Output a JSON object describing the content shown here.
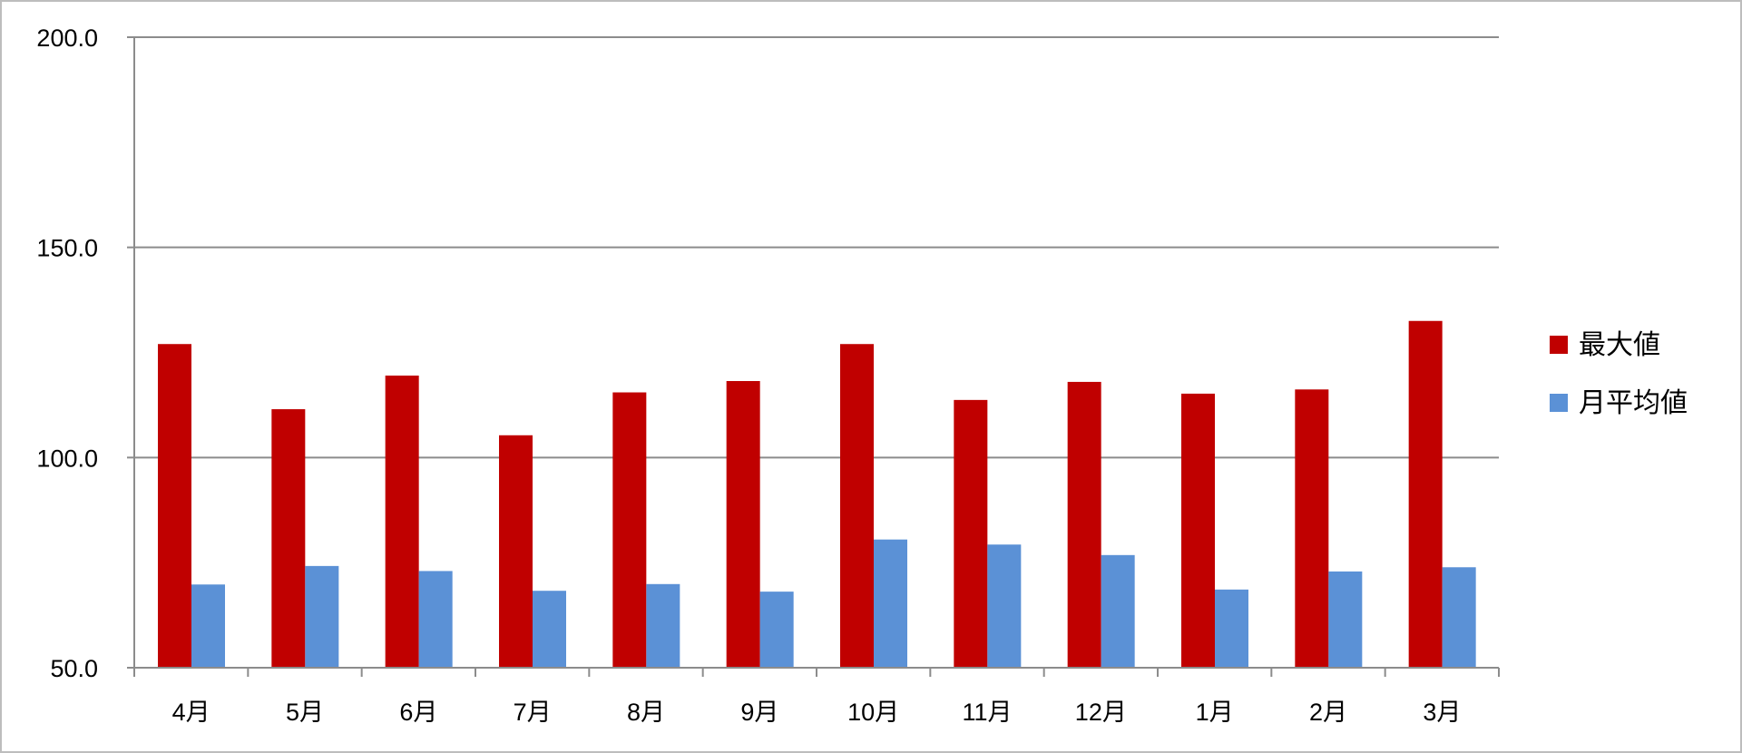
{
  "chart_data": {
    "type": "bar",
    "title": "",
    "xlabel": "",
    "ylabel": "",
    "categories": [
      "4月",
      "5月",
      "6月",
      "7月",
      "8月",
      "9月",
      "10月",
      "11月",
      "12月",
      "1月",
      "2月",
      "3月"
    ],
    "series": [
      {
        "name": "最大値",
        "color": "#c00000",
        "values": [
          127.0,
          111.5,
          119.5,
          105.3,
          115.5,
          118.2,
          127.0,
          113.7,
          118.0,
          115.2,
          116.2,
          132.5
        ]
      },
      {
        "name": "月平均値",
        "color": "#5b91d6",
        "values": [
          69.8,
          74.2,
          73.0,
          68.3,
          69.9,
          68.1,
          80.5,
          79.3,
          76.8,
          68.6,
          72.9,
          73.9
        ]
      }
    ],
    "ylim": [
      50,
      200
    ],
    "yticks": [
      "50.0",
      "100.0",
      "150.0",
      "200.0"
    ],
    "grid": true,
    "legend_position": "right"
  }
}
